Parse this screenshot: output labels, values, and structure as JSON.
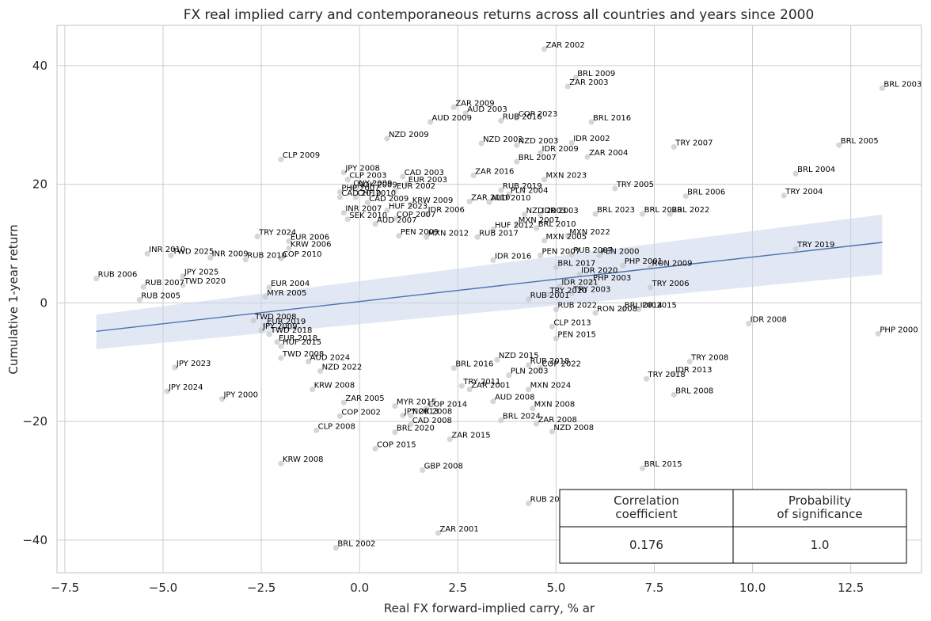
{
  "chart_data": {
    "type": "scatter",
    "title": "FX real implied carry and contemporaneous returns across all countries and years since 2000",
    "xlabel": "Real FX forward-implied carry, % ar",
    "ylabel": "Cumulative 1-year return",
    "xlim": [
      -7.7,
      14.3
    ],
    "ylim": [
      -45.5,
      46.8
    ],
    "x_ticks": [
      -7.5,
      -5.0,
      -2.5,
      0.0,
      2.5,
      5.0,
      7.5,
      10.0,
      12.5
    ],
    "x_tick_labels": [
      "−7.5",
      "−5.0",
      "−2.5",
      "0.0",
      "2.5",
      "5.0",
      "7.5",
      "10.0",
      "12.5"
    ],
    "y_ticks": [
      -40,
      -20,
      0,
      20,
      40
    ],
    "y_tick_labels": [
      "−40",
      "−20",
      "0",
      "20",
      "40"
    ],
    "grid": true,
    "regression": {
      "x": [
        -6.7,
        13.3
      ],
      "y": [
        -4.8,
        10.2
      ],
      "ci_lower": [
        -7.8,
        4.8
      ],
      "ci_upper": [
        -2.0,
        14.9
      ]
    },
    "points": [
      {
        "label": "ZAR 2002",
        "x": 4.7,
        "y": 42.8
      },
      {
        "label": "BRL 2009",
        "x": 5.5,
        "y": 38.0
      },
      {
        "label": "ZAR 2003",
        "x": 5.3,
        "y": 36.5
      },
      {
        "label": "BRL 2003",
        "x": 13.3,
        "y": 36.2
      },
      {
        "label": "ZAR 2009",
        "x": 2.4,
        "y": 33.0
      },
      {
        "label": "AUD 2003",
        "x": 2.7,
        "y": 32.0
      },
      {
        "label": "COP 2023",
        "x": 4.0,
        "y": 31.2
      },
      {
        "label": "AUD 2009",
        "x": 1.8,
        "y": 30.5
      },
      {
        "label": "RUB 2016",
        "x": 3.6,
        "y": 30.7
      },
      {
        "label": "BRL 2016",
        "x": 5.9,
        "y": 30.5
      },
      {
        "label": "NZD 2009",
        "x": 0.7,
        "y": 27.7
      },
      {
        "label": "NZD 2002",
        "x": 3.1,
        "y": 26.9
      },
      {
        "label": "NZD 2003",
        "x": 4.0,
        "y": 26.6
      },
      {
        "label": "IDR 2002",
        "x": 5.4,
        "y": 27.0
      },
      {
        "label": "TRY 2007",
        "x": 8.0,
        "y": 26.3
      },
      {
        "label": "BRL 2005",
        "x": 12.2,
        "y": 26.6
      },
      {
        "label": "IDR 2009",
        "x": 4.6,
        "y": 25.3
      },
      {
        "label": "ZAR 2004",
        "x": 5.8,
        "y": 24.6
      },
      {
        "label": "CLP 2009",
        "x": -2.0,
        "y": 24.2
      },
      {
        "label": "BRL 2007",
        "x": 4.0,
        "y": 23.8
      },
      {
        "label": "JPY 2008",
        "x": -0.4,
        "y": 22.0
      },
      {
        "label": "BRL 2004",
        "x": 11.1,
        "y": 21.8
      },
      {
        "label": "ZAR 2016",
        "x": 2.9,
        "y": 21.5
      },
      {
        "label": "CAD 2003",
        "x": 1.1,
        "y": 21.3
      },
      {
        "label": "MXN 2023",
        "x": 4.7,
        "y": 20.8
      },
      {
        "label": "CLP 2003",
        "x": -0.3,
        "y": 20.8
      },
      {
        "label": "EUR 2003",
        "x": 1.2,
        "y": 20.1
      },
      {
        "label": "TRY 2005",
        "x": 6.5,
        "y": 19.3
      },
      {
        "label": "CNY 2009",
        "x": -0.2,
        "y": 19.5
      },
      {
        "label": "NOK 2009",
        "x": -0.1,
        "y": 19.2
      },
      {
        "label": "EUR 2002",
        "x": 0.9,
        "y": 19.0
      },
      {
        "label": "RUB 2019",
        "x": 3.6,
        "y": 19.0
      },
      {
        "label": "PHP 2007",
        "x": -0.5,
        "y": 18.7
      },
      {
        "label": "BRL 2006",
        "x": 8.3,
        "y": 18.0
      },
      {
        "label": "TRY 2004",
        "x": 10.8,
        "y": 18.1
      },
      {
        "label": "PLN 2004",
        "x": 3.8,
        "y": 18.3
      },
      {
        "label": "CAD 2010",
        "x": -0.5,
        "y": 17.8
      },
      {
        "label": "CHF 2010",
        "x": -0.1,
        "y": 17.8
      },
      {
        "label": "CAD 2009",
        "x": 0.2,
        "y": 16.9
      },
      {
        "label": "KRW 2009",
        "x": 1.3,
        "y": 16.6
      },
      {
        "label": "AUD 2010",
        "x": 3.3,
        "y": 17.0
      },
      {
        "label": "ZAR 2010",
        "x": 2.8,
        "y": 17.1
      },
      {
        "label": "HUF 2023",
        "x": 0.7,
        "y": 15.6
      },
      {
        "label": "INR 2007",
        "x": -0.4,
        "y": 15.2
      },
      {
        "label": "IDR 2006",
        "x": 1.7,
        "y": 15.0
      },
      {
        "label": "BRL 2023",
        "x": 6.0,
        "y": 15.0
      },
      {
        "label": "BRL 2020",
        "x": 7.2,
        "y": 15.0
      },
      {
        "label": "BRL 2022",
        "x": 7.9,
        "y": 15.0
      },
      {
        "label": "NZD 2003",
        "x": 4.2,
        "y": 14.9
      },
      {
        "label": "IDR 2003",
        "x": 4.6,
        "y": 14.9
      },
      {
        "label": "SEK 2010",
        "x": -0.3,
        "y": 14.1
      },
      {
        "label": "COP 2007",
        "x": 0.9,
        "y": 14.2
      },
      {
        "label": "AUD 2007",
        "x": 0.4,
        "y": 13.3
      },
      {
        "label": "MXN 2007",
        "x": 4.0,
        "y": 13.3
      },
      {
        "label": "BRL 2010",
        "x": 4.5,
        "y": 12.6
      },
      {
        "label": "HUF 2012",
        "x": 3.4,
        "y": 12.4
      },
      {
        "label": "TRY 2024",
        "x": -2.6,
        "y": 11.2
      },
      {
        "label": "PEN 2009",
        "x": 1.0,
        "y": 11.3
      },
      {
        "label": "MXN 2012",
        "x": 1.7,
        "y": 11.1
      },
      {
        "label": "RUB 2017",
        "x": 3.0,
        "y": 11.1
      },
      {
        "label": "MXN 2022",
        "x": 5.3,
        "y": 11.3
      },
      {
        "label": "MXN 2005",
        "x": 4.7,
        "y": 10.5
      },
      {
        "label": "EUR 2006",
        "x": -1.8,
        "y": 10.4
      },
      {
        "label": "KRW 2006",
        "x": -1.8,
        "y": 9.2
      },
      {
        "label": "INR 2010",
        "x": -5.4,
        "y": 8.3
      },
      {
        "label": "TWD 2025",
        "x": -4.8,
        "y": 8.0
      },
      {
        "label": "TRY 2019",
        "x": 11.1,
        "y": 9.1
      },
      {
        "label": "RUB 2007",
        "x": 5.4,
        "y": 8.2
      },
      {
        "label": "PEN 2000",
        "x": 6.1,
        "y": 8.0
      },
      {
        "label": "PEN 2007",
        "x": 4.6,
        "y": 8.0
      },
      {
        "label": "INR 2009",
        "x": -3.8,
        "y": 7.6
      },
      {
        "label": "RUB 2010",
        "x": -2.9,
        "y": 7.3
      },
      {
        "label": "COP 2010",
        "x": -2.0,
        "y": 7.5
      },
      {
        "label": "IDR 2016",
        "x": 3.4,
        "y": 7.2
      },
      {
        "label": "BRL 2017",
        "x": 5.0,
        "y": 6.0
      },
      {
        "label": "PHP 2001",
        "x": 6.7,
        "y": 6.3
      },
      {
        "label": "RON 2009",
        "x": 7.4,
        "y": 6.0
      },
      {
        "label": "IDR 2020",
        "x": 5.6,
        "y": 4.8
      },
      {
        "label": "RUB 2006",
        "x": -6.7,
        "y": 4.1
      },
      {
        "label": "JPY 2025",
        "x": -4.5,
        "y": 4.5
      },
      {
        "label": "TWD 2020",
        "x": -4.5,
        "y": 3.0
      },
      {
        "label": "RUB 2007",
        "x": -5.5,
        "y": 2.7
      },
      {
        "label": "PHP 2003",
        "x": 5.9,
        "y": 3.5
      },
      {
        "label": "TRY 2006",
        "x": 7.4,
        "y": 2.6
      },
      {
        "label": "IDR 2021",
        "x": 5.1,
        "y": 2.8
      },
      {
        "label": "TRY 2003",
        "x": 5.4,
        "y": 1.6
      },
      {
        "label": "TRY 2020",
        "x": 4.8,
        "y": 1.4
      },
      {
        "label": "EUR 2004",
        "x": -2.3,
        "y": 2.6
      },
      {
        "label": "MYR 2005",
        "x": -2.4,
        "y": 1.0
      },
      {
        "label": "RUB 2005",
        "x": -5.6,
        "y": 0.5
      },
      {
        "label": "RUB 2001",
        "x": 4.3,
        "y": 0.6
      },
      {
        "label": "RUB 2022",
        "x": 5.0,
        "y": -1.1
      },
      {
        "label": "RON 2008",
        "x": 6.0,
        "y": -1.7
      },
      {
        "label": "BRL 2014",
        "x": 6.7,
        "y": -1.1
      },
      {
        "label": "IDR 2015",
        "x": 7.1,
        "y": -1.1
      },
      {
        "label": "TWD 2008",
        "x": -2.7,
        "y": -3.0
      },
      {
        "label": "EUR 2019",
        "x": -2.4,
        "y": -3.8
      },
      {
        "label": "JPY 2009",
        "x": -2.5,
        "y": -4.6
      },
      {
        "label": "IDR 2008",
        "x": 9.9,
        "y": -3.5
      },
      {
        "label": "PHP 2000",
        "x": 13.2,
        "y": -5.2
      },
      {
        "label": "CLP 2013",
        "x": 4.9,
        "y": -4.0
      },
      {
        "label": "TWD 2018",
        "x": -2.3,
        "y": -5.3
      },
      {
        "label": "PEN 2015",
        "x": 5.0,
        "y": -6.0
      },
      {
        "label": "EUR 2018",
        "x": -2.1,
        "y": -6.6
      },
      {
        "label": "HUF 2015",
        "x": -2.0,
        "y": -7.3
      },
      {
        "label": "TWD 2008",
        "x": -2.0,
        "y": -9.3
      },
      {
        "label": "AUD 2024",
        "x": -1.3,
        "y": -9.9
      },
      {
        "label": "NZD 2015",
        "x": 3.5,
        "y": -9.6
      },
      {
        "label": "TRY 2008",
        "x": 8.4,
        "y": -9.9
      },
      {
        "label": "RUB 2018",
        "x": 4.3,
        "y": -10.5
      },
      {
        "label": "JPY 2023",
        "x": -4.7,
        "y": -10.9
      },
      {
        "label": "COP 2022",
        "x": 4.6,
        "y": -11.0
      },
      {
        "label": "NZD 2022",
        "x": -1.0,
        "y": -11.5
      },
      {
        "label": "BRL 2016",
        "x": 2.4,
        "y": -11.0
      },
      {
        "label": "PLN 2003",
        "x": 3.8,
        "y": -12.2
      },
      {
        "label": "IDR 2013",
        "x": 8.0,
        "y": -12.0
      },
      {
        "label": "TRY 2018",
        "x": 7.3,
        "y": -12.8
      },
      {
        "label": "TRY 2011",
        "x": 2.6,
        "y": -14.0
      },
      {
        "label": "KRW 2008",
        "x": -1.2,
        "y": -14.6
      },
      {
        "label": "ZAR 2001",
        "x": 2.8,
        "y": -14.6
      },
      {
        "label": "MXN 2024",
        "x": 4.3,
        "y": -14.6
      },
      {
        "label": "BRL 2008",
        "x": 8.0,
        "y": -15.5
      },
      {
        "label": "JPY 2024",
        "x": -4.9,
        "y": -14.9
      },
      {
        "label": "JPY 2000",
        "x": -3.5,
        "y": -16.2
      },
      {
        "label": "AUD 2008",
        "x": 3.4,
        "y": -16.6
      },
      {
        "label": "ZAR 2005",
        "x": -0.4,
        "y": -16.8
      },
      {
        "label": "MYR 2015",
        "x": 0.9,
        "y": -17.4
      },
      {
        "label": "MXN 2008",
        "x": 4.4,
        "y": -17.8
      },
      {
        "label": "COP 2014",
        "x": 1.7,
        "y": -17.8
      },
      {
        "label": "COP 2002",
        "x": -0.5,
        "y": -19.1
      },
      {
        "label": "JPY 2013",
        "x": 1.1,
        "y": -19.0
      },
      {
        "label": "NOK 2008",
        "x": 1.3,
        "y": -19.0
      },
      {
        "label": "BRL 2024",
        "x": 3.6,
        "y": -19.8
      },
      {
        "label": "CAD 2008",
        "x": 1.3,
        "y": -20.5
      },
      {
        "label": "ZAR 2008",
        "x": 4.5,
        "y": -20.4
      },
      {
        "label": "CLP 2008",
        "x": -1.1,
        "y": -21.5
      },
      {
        "label": "BRL 2020",
        "x": 0.9,
        "y": -21.8
      },
      {
        "label": "NZD 2008",
        "x": 4.9,
        "y": -21.7
      },
      {
        "label": "ZAR 2015",
        "x": 2.3,
        "y": -23.0
      },
      {
        "label": "COP 2015",
        "x": 0.4,
        "y": -24.6
      },
      {
        "label": "KRW 2008",
        "x": -2.0,
        "y": -27.1
      },
      {
        "label": "GBP 2008",
        "x": 1.6,
        "y": -28.2
      },
      {
        "label": "BRL 2015",
        "x": 7.2,
        "y": -27.9
      },
      {
        "label": "RUB 2014",
        "x": 4.3,
        "y": -33.8
      },
      {
        "label": "ZAR 2001",
        "x": 2.0,
        "y": -38.8
      },
      {
        "label": "BRL 2002",
        "x": -0.6,
        "y": -41.3
      }
    ],
    "annotation_table": {
      "headers": [
        "Correlation\ncoefficient",
        "Probability\nof significance"
      ],
      "values": [
        "0.176",
        "1.0"
      ]
    }
  }
}
